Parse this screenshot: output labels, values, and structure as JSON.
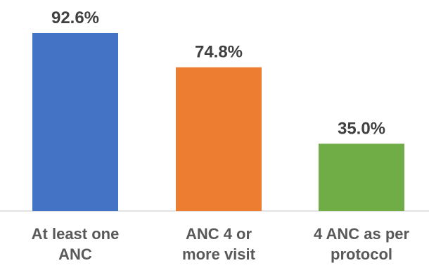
{
  "chart_data": {
    "type": "bar",
    "categories": [
      [
        "At least one",
        "ANC"
      ],
      [
        "ANC 4 or",
        "more visit"
      ],
      [
        "4 ANC as per",
        "protocol"
      ]
    ],
    "values": [
      92.6,
      74.8,
      35.0
    ],
    "value_labels": [
      "92.6%",
      "74.8%",
      "35.0%"
    ],
    "colors": [
      "#4472C4",
      "#ED7D31",
      "#70AD47"
    ],
    "unit": "%",
    "ylim": [
      0,
      100
    ],
    "title": "",
    "xlabel": "",
    "ylabel": "",
    "grid": false,
    "legend": "none"
  }
}
